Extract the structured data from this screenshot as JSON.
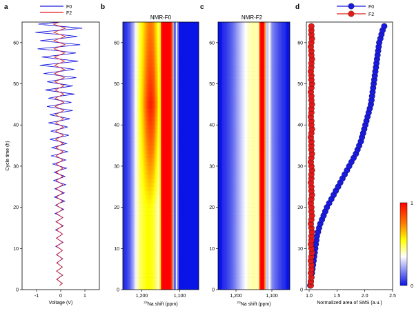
{
  "panels": {
    "a": {
      "label": "a"
    },
    "b": {
      "label": "b",
      "title": "NMR-F0"
    },
    "c": {
      "label": "c",
      "title": "NMR-F2"
    },
    "d": {
      "label": "d"
    }
  },
  "colorbar": {
    "max_label": "1",
    "min_label": "0"
  },
  "colors": {
    "F0": "#1a1adf",
    "F2": "#e21a1a",
    "map_background": "#0a14e6"
  },
  "chart_data": [
    {
      "type": "line",
      "panel": "a",
      "xlabel": "Voltage (V)",
      "ylabel": "Cycle time (h)",
      "xlim": [
        -1.6,
        1.6
      ],
      "ylim": [
        0,
        65
      ],
      "xticks": [
        "-1",
        "0",
        "1"
      ],
      "xtick_values": [
        -1,
        0,
        1
      ],
      "yticks": [
        "0",
        "10",
        "20",
        "30",
        "40",
        "50",
        "60"
      ],
      "ytick_values": [
        0,
        10,
        20,
        30,
        40,
        50,
        60
      ],
      "legend": {
        "position": "top",
        "entries": [
          "F0",
          "F2"
        ]
      },
      "series": [
        {
          "name": "F0",
          "center": -0.05,
          "half_width_start": 0.12,
          "half_width_end": 1.0,
          "period_h": 2.0,
          "t_start": 1,
          "t_end": 65
        },
        {
          "name": "F2",
          "center": -0.05,
          "half_width_start": 0.12,
          "half_width_end": 0.25,
          "period_h": 2.0,
          "t_start": 1,
          "t_end": 65
        }
      ]
    },
    {
      "type": "heatmap",
      "panel": "b",
      "title": "NMR-F0",
      "xlabel": "23Na shift (ppm)",
      "xlim": [
        1250,
        1050
      ],
      "ylim": [
        0,
        65
      ],
      "xticks": [
        "1,200",
        "1,100"
      ],
      "xtick_values": [
        1200,
        1100
      ],
      "yticks": [
        "0",
        "10",
        "20",
        "30",
        "40",
        "50",
        "60"
      ],
      "ytick_values": [
        0,
        10,
        20,
        30,
        40,
        50,
        60
      ],
      "peak_center_ppm": 1135,
      "dip_ppm": 1108,
      "peak_intensity": 1.0,
      "shoulder_onset_h": 20,
      "shoulder_max_ppm": 1210
    },
    {
      "type": "heatmap",
      "panel": "c",
      "title": "NMR-F2",
      "xlabel": "23Na shift (ppm)",
      "xlim": [
        1250,
        1050
      ],
      "ylim": [
        0,
        65
      ],
      "xticks": [
        "1,200",
        "1,100"
      ],
      "xtick_values": [
        1200,
        1100
      ],
      "yticks": [
        "0",
        "10",
        "20",
        "30",
        "40",
        "50",
        "60"
      ],
      "ytick_values": [
        0,
        10,
        20,
        30,
        40,
        50,
        60
      ],
      "peak_center_ppm": 1127,
      "dip_ppm": 1106,
      "peak_intensity": 1.0
    },
    {
      "type": "scatter",
      "panel": "d",
      "xlabel": "Normalized area of SMS (a.u.)",
      "xlim": [
        0.95,
        2.5
      ],
      "ylim": [
        0,
        65
      ],
      "xticks": [
        "1.0",
        "1.5",
        "2.0",
        "2.5"
      ],
      "xtick_values": [
        1.0,
        1.5,
        2.0,
        2.5
      ],
      "yticks": [
        "0",
        "10",
        "20",
        "30",
        "40",
        "50",
        "60"
      ],
      "ytick_values": [
        0,
        10,
        20,
        30,
        40,
        50,
        60
      ],
      "legend": {
        "position": "top",
        "entries": [
          "F0",
          "F2"
        ]
      },
      "series": [
        {
          "name": "F0",
          "y_start": 1,
          "y_step": 1,
          "values": [
            1.02,
            1.03,
            1.04,
            1.05,
            1.06,
            1.07,
            1.08,
            1.09,
            1.1,
            1.11,
            1.12,
            1.13,
            1.14,
            1.16,
            1.18,
            1.2,
            1.23,
            1.26,
            1.29,
            1.32,
            1.36,
            1.4,
            1.44,
            1.48,
            1.52,
            1.56,
            1.6,
            1.64,
            1.68,
            1.72,
            1.76,
            1.8,
            1.84,
            1.87,
            1.9,
            1.93,
            1.95,
            1.97,
            1.99,
            2.01,
            2.03,
            2.05,
            2.07,
            2.09,
            2.11,
            2.12,
            2.13,
            2.14,
            2.15,
            2.16,
            2.17,
            2.18,
            2.19,
            2.2,
            2.21,
            2.22,
            2.23,
            2.24,
            2.25,
            2.26,
            2.28,
            2.3,
            2.32,
            2.35
          ]
        },
        {
          "name": "F2",
          "y_start": 1,
          "y_step": 1,
          "values": [
            1.03,
            1.03,
            1.04,
            1.03,
            1.04,
            1.04,
            1.03,
            1.04,
            1.05,
            1.04,
            1.03,
            1.04,
            1.04,
            1.05,
            1.04,
            1.03,
            1.04,
            1.05,
            1.04,
            1.04,
            1.03,
            1.04,
            1.05,
            1.04,
            1.04,
            1.03,
            1.04,
            1.04,
            1.05,
            1.04,
            1.03,
            1.04,
            1.05,
            1.04,
            1.04,
            1.04,
            1.03,
            1.04,
            1.05,
            1.04,
            1.04,
            1.03,
            1.04,
            1.04,
            1.05,
            1.04,
            1.04,
            1.03,
            1.04,
            1.05,
            1.04,
            1.04,
            1.03,
            1.04,
            1.04,
            1.05,
            1.04,
            1.04,
            1.03,
            1.04,
            1.05,
            1.04,
            1.04,
            1.04
          ]
        }
      ]
    }
  ]
}
